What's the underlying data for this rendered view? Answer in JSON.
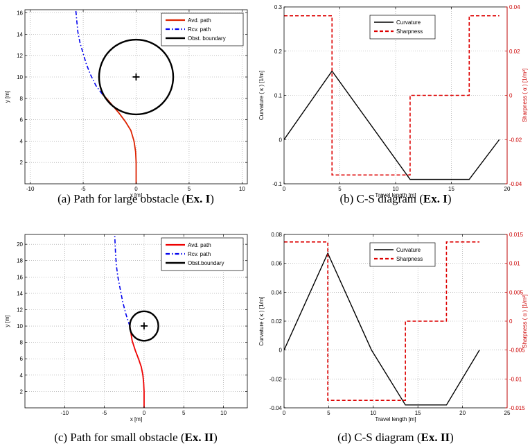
{
  "chart_data": [
    {
      "type": "line",
      "caption": {
        "pre": "(a) Path for large obstacle (",
        "bold": "Ex. I",
        "post": ")"
      },
      "xlabel": "x [m]",
      "ylabel": "y [m]",
      "xlim": [
        -10.5,
        10.5
      ],
      "ylim": [
        0,
        16.3
      ],
      "xticks": [
        -10,
        -5,
        0,
        5,
        10
      ],
      "yticks": [
        2,
        4,
        6,
        8,
        10,
        12,
        14,
        16
      ],
      "grid": true,
      "legend_position": "top-right",
      "series": [
        {
          "name": "Avd. path",
          "color": "#dd2200",
          "style": "solid",
          "x": [
            0,
            0,
            -0.05,
            -0.2,
            -0.5,
            -1.0,
            -1.6,
            -2.2,
            -2.8,
            -3.2
          ],
          "y": [
            0,
            2,
            3,
            4,
            5,
            5.8,
            6.6,
            7.3,
            8.0,
            8.4
          ]
        },
        {
          "name": "Rcv. path",
          "color": "#0000ee",
          "style": "dashdot",
          "x": [
            -3.2,
            -3.8,
            -4.3,
            -4.7,
            -5.0,
            -5.3,
            -5.5,
            -5.6,
            -5.7
          ],
          "y": [
            8.4,
            9.2,
            10.2,
            11.2,
            12.2,
            13.2,
            14.2,
            15.2,
            16.3
          ]
        },
        {
          "name": "Obst. boundary",
          "color": "#000000",
          "style": "circle",
          "cx": 0,
          "cy": 10,
          "r": 3.5
        }
      ],
      "center_marker": {
        "x": 0,
        "y": 10,
        "label": "+"
      }
    },
    {
      "type": "line",
      "caption": {
        "pre": "(b) C-S diagram (",
        "bold": "Ex. I",
        "post": ")"
      },
      "xlabel": "Travel length [m]",
      "ylabel": "Curvature ( κ ) [1/m]",
      "y2label": "Sharpness ( α ) [1/m²]",
      "xlim": [
        0,
        20
      ],
      "ylim": [
        -0.1,
        0.3
      ],
      "y2lim": [
        -0.04,
        0.04
      ],
      "xticks": [
        0,
        5,
        10,
        15,
        20
      ],
      "yticks": [
        -0.1,
        0,
        0.1,
        0.2,
        0.3
      ],
      "y2ticks": [
        -0.04,
        -0.02,
        0,
        0.02,
        0.04
      ],
      "grid": true,
      "legend_position": "top-center",
      "series": [
        {
          "name": "Curvature",
          "color": "#000000",
          "style": "solid",
          "axis": "left",
          "x": [
            0,
            4.3,
            11.3,
            16.6,
            19.3
          ],
          "y": [
            0,
            0.155,
            -0.09,
            -0.09,
            0
          ]
        },
        {
          "name": "Sharpness",
          "color": "#dd0000",
          "style": "dashed",
          "axis": "right",
          "x": [
            0,
            4.3,
            4.3,
            11.3,
            11.3,
            16.6,
            16.6,
            19.3
          ],
          "y": [
            0.036,
            0.036,
            -0.036,
            -0.036,
            0,
            0,
            0.036,
            0.036
          ]
        }
      ]
    },
    {
      "type": "line",
      "caption": {
        "pre": "(c) Path for small obstacle (",
        "bold": "Ex. II",
        "post": ")"
      },
      "xlabel": "x [m]",
      "ylabel": "y [m]",
      "xlim": [
        -15,
        13
      ],
      "ylim": [
        0,
        21.2
      ],
      "xticks": [
        -10,
        -5,
        0,
        5,
        10
      ],
      "yticks": [
        2,
        4,
        6,
        8,
        10,
        12,
        14,
        16,
        18,
        20
      ],
      "grid": true,
      "legend_position": "top-right",
      "series": [
        {
          "name": "Avd. path",
          "color": "#ee0000",
          "style": "solid",
          "x": [
            0,
            0,
            -0.05,
            -0.15,
            -0.35,
            -0.7,
            -1.1,
            -1.5,
            -1.8
          ],
          "y": [
            0,
            2,
            3,
            4,
            5,
            6,
            7,
            8.2,
            10
          ]
        },
        {
          "name": "Rcv. path",
          "color": "#0000ee",
          "style": "dashdot",
          "x": [
            -1.8,
            -2.3,
            -2.7,
            -3.0,
            -3.3,
            -3.5,
            -3.6,
            -3.7
          ],
          "y": [
            10,
            11.5,
            13,
            14.5,
            16,
            17.5,
            19,
            21.2
          ]
        },
        {
          "name": "Obst.boundary",
          "color": "#000000",
          "style": "circle",
          "cx": 0,
          "cy": 10,
          "r": 1.8
        }
      ],
      "center_marker": {
        "x": 0,
        "y": 10,
        "label": "+"
      }
    },
    {
      "type": "line",
      "caption": {
        "pre": "(d) C-S diagram (",
        "bold": "Ex. II",
        "post": ")"
      },
      "xlabel": "Travel length [m]",
      "ylabel": "Curvature ( κ ) [1/m]",
      "y2label": "Sharpness ( α ) [1/m²]",
      "xlim": [
        0,
        25
      ],
      "ylim": [
        -0.04,
        0.08
      ],
      "y2lim": [
        -0.015,
        0.015
      ],
      "xticks": [
        0,
        5,
        10,
        15,
        20,
        25
      ],
      "yticks": [
        -0.04,
        -0.02,
        0,
        0.02,
        0.04,
        0.06,
        0.08
      ],
      "y2ticks": [
        -0.015,
        -0.01,
        -0.005,
        0,
        0.005,
        0.01,
        0.015
      ],
      "grid": true,
      "legend_position": "top-center",
      "series": [
        {
          "name": "Curvature",
          "color": "#000000",
          "style": "solid",
          "axis": "left",
          "x": [
            0,
            4.9,
            9.8,
            13.6,
            18.2,
            21.9
          ],
          "y": [
            0,
            0.067,
            0,
            -0.038,
            -0.038,
            0
          ]
        },
        {
          "name": "Sharpness",
          "color": "#dd0000",
          "style": "dashed",
          "axis": "right",
          "x": [
            0,
            4.9,
            4.9,
            13.6,
            13.6,
            18.2,
            18.2,
            21.9
          ],
          "y": [
            0.0137,
            0.0137,
            -0.0137,
            -0.0137,
            0,
            0,
            0.0137,
            0.0137
          ]
        }
      ]
    }
  ]
}
